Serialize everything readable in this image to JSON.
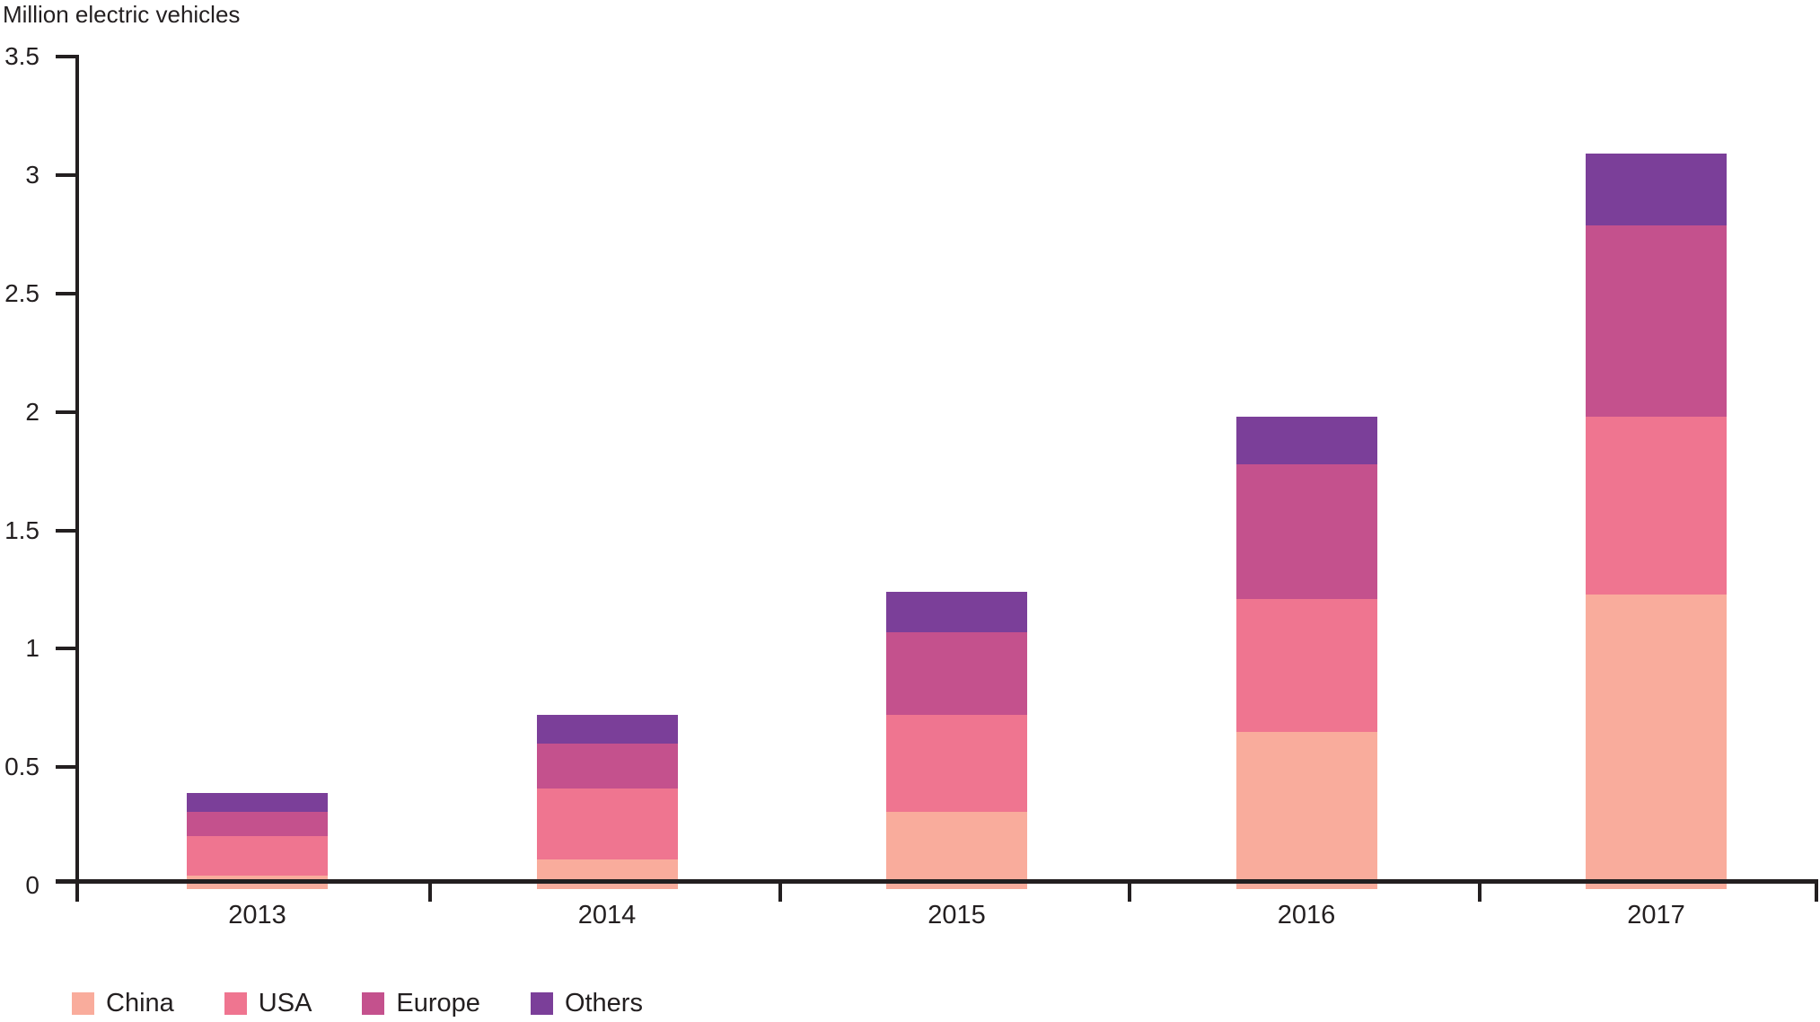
{
  "chart_data": {
    "type": "bar",
    "stacked": true,
    "title": "Million electric vehicles",
    "categories": [
      "2013",
      "2014",
      "2015",
      "2016",
      "2017"
    ],
    "series": [
      {
        "name": "China",
        "color": "#f9ac9c",
        "values": [
          0.04,
          0.11,
          0.31,
          0.65,
          1.23
        ]
      },
      {
        "name": "USA",
        "color": "#ef7590",
        "values": [
          0.17,
          0.3,
          0.41,
          0.56,
          0.75
        ]
      },
      {
        "name": "Europe",
        "color": "#c4518d",
        "values": [
          0.1,
          0.19,
          0.35,
          0.57,
          0.81
        ]
      },
      {
        "name": "Others",
        "color": "#7b3f99",
        "values": [
          0.08,
          0.12,
          0.17,
          0.2,
          0.3
        ]
      }
    ],
    "totals": [
      0.39,
      0.72,
      1.24,
      1.98,
      3.09
    ],
    "ylim": [
      0,
      3.5
    ],
    "yticks": [
      0,
      0.5,
      1,
      1.5,
      2,
      2.5,
      3,
      3.5
    ],
    "ytick_labels": [
      "0",
      "0.5",
      "1",
      "1.5",
      "2",
      "2.5",
      "3",
      "3.5"
    ],
    "xlabel": "",
    "ylabel": "Million electric vehicles",
    "grid": false,
    "legend_position": "bottom",
    "axis_color": "#231f20",
    "text_color": "#231f20",
    "background_color": "#ffffff"
  }
}
